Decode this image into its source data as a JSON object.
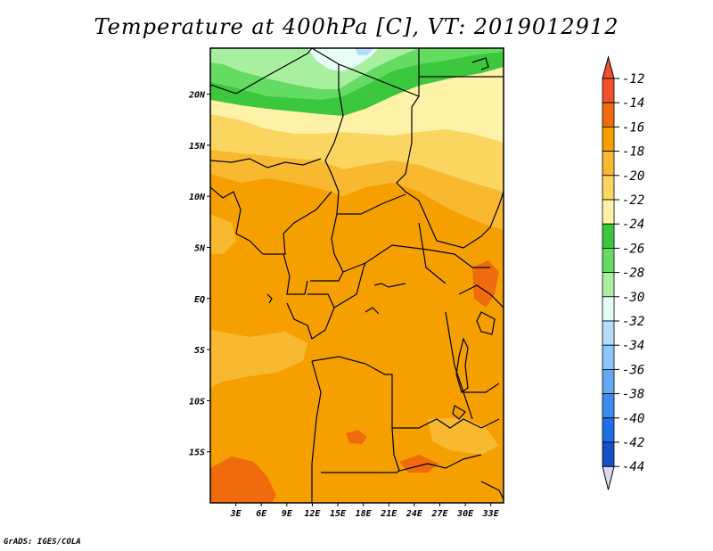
{
  "title": "Temperature at 400hPa [C], VT: 2019012912",
  "credit": "GrADS: IGES/COLA",
  "map": {
    "lon_ticks": [
      "3E",
      "6E",
      "9E",
      "12E",
      "15E",
      "18E",
      "21E",
      "24E",
      "27E",
      "30E",
      "33E"
    ],
    "lat_ticks": [
      "20N",
      "15N",
      "10N",
      "5N",
      "EQ",
      "5S",
      "10S",
      "15S"
    ],
    "lon_range": [
      0,
      34.5
    ],
    "lat_range": [
      -20,
      24.5
    ]
  },
  "colorbar": {
    "labels": [
      "-12",
      "-14",
      "-16",
      "-18",
      "-20",
      "-22",
      "-24",
      "-26",
      "-28",
      "-30",
      "-32",
      "-34",
      "-36",
      "-38",
      "-40",
      "-42",
      "-44"
    ],
    "colors": [
      "#f0502a",
      "#f06a0e",
      "#f5a000",
      "#f8b830",
      "#fad560",
      "#fdf2a8",
      "#3cc83c",
      "#64dc64",
      "#a8f0a0",
      "#e8fcf8",
      "#b4dcfc",
      "#8cc4fc",
      "#64a8f4",
      "#3c8cf0",
      "#1e6ee6",
      "#1450c8",
      "#0a1e8c"
    ],
    "top_arrow_color": "#f0502a",
    "bottom_arrow_color": "#dcd8f8"
  },
  "field_colors": {
    "green_dark": "#3cc83c",
    "green_mid": "#64dc64",
    "green_light": "#a8f0a0",
    "cyan": "#e8fcf8",
    "blue": "#b4dcfc",
    "yellow_pale": "#fdf2a8",
    "yellow": "#fad560",
    "orange_light": "#f8b830",
    "orange": "#f5a000",
    "orange_dark": "#f06a0e"
  }
}
